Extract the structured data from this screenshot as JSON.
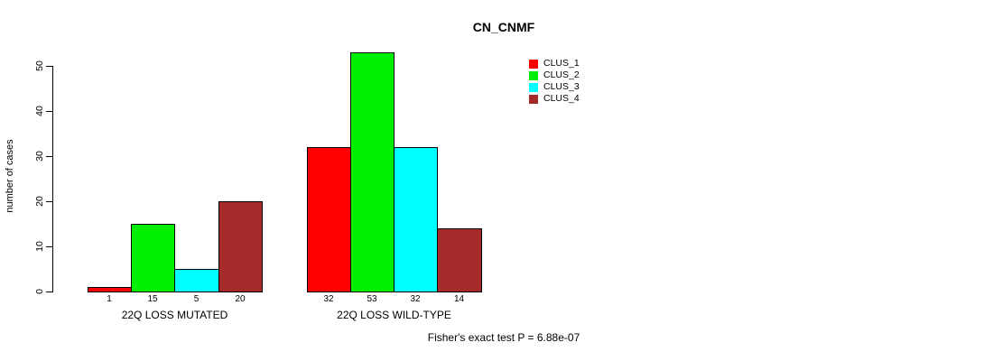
{
  "chart_data": {
    "type": "bar",
    "title": "CN_CNMF",
    "xlabel": "",
    "ylabel": "number of cases",
    "ylim": [
      0,
      50
    ],
    "yticks": [
      0,
      10,
      20,
      30,
      40,
      50
    ],
    "grid": false,
    "legend_position": "top-right-inside",
    "categories": [
      "22Q LOSS MUTATED",
      "22Q LOSS WILD-TYPE"
    ],
    "series": [
      {
        "name": "CLUS_1",
        "color": "#ff0000",
        "values": [
          1,
          32
        ]
      },
      {
        "name": "CLUS_2",
        "color": "#00ee00",
        "values": [
          15,
          53
        ]
      },
      {
        "name": "CLUS_3",
        "color": "#00ffff",
        "values": [
          5,
          32
        ]
      },
      {
        "name": "CLUS_4",
        "color": "#a52a2a",
        "values": [
          20,
          14
        ]
      }
    ],
    "bar_value_labels_shown": true,
    "bar_border_color": "#000000",
    "text_color": "#000000",
    "background_color": "#ffffff",
    "annotation": "Fisher's exact test P = 6.88e-07"
  }
}
